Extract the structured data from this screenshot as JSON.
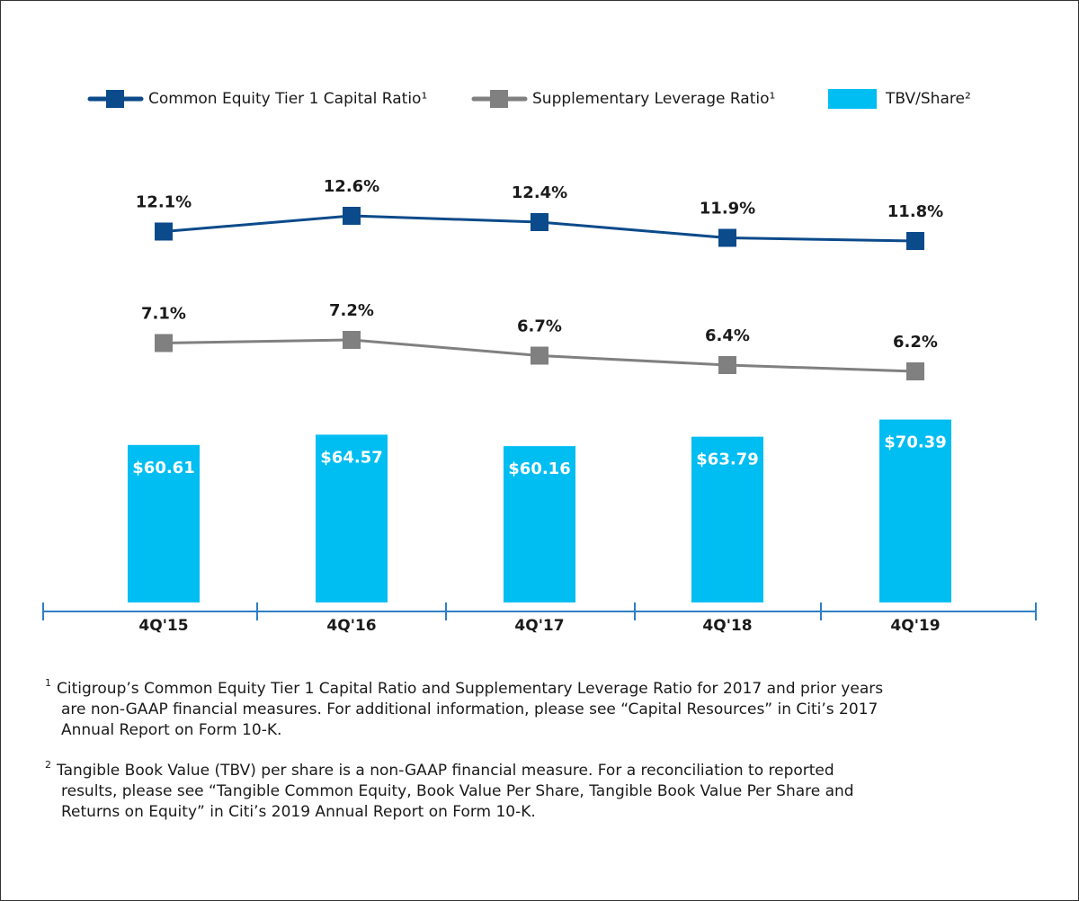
{
  "chart_data": {
    "type": "combo",
    "categories": [
      "4Q'15",
      "4Q'16",
      "4Q'17",
      "4Q'18",
      "4Q'19"
    ],
    "series": [
      {
        "name": "Common Equity Tier 1 Capital Ratio¹",
        "type": "line",
        "color": "#0b4a8b",
        "values": [
          12.1,
          12.6,
          12.4,
          11.9,
          11.8
        ],
        "value_labels": [
          "12.1%",
          "12.6%",
          "12.4%",
          "11.9%",
          "11.8%"
        ]
      },
      {
        "name": "Supplementary Leverage Ratio¹",
        "type": "line",
        "color": "#808080",
        "values": [
          7.1,
          7.2,
          6.7,
          6.4,
          6.2
        ],
        "value_labels": [
          "7.1%",
          "7.2%",
          "6.7%",
          "6.4%",
          "6.2%"
        ]
      },
      {
        "name": "TBV/Share²",
        "type": "bar",
        "color": "#00bdf2",
        "values": [
          60.61,
          64.57,
          60.16,
          63.79,
          70.39
        ],
        "value_labels": [
          "$60.61",
          "$64.57",
          "$60.16",
          "$63.79",
          "$70.39"
        ]
      }
    ],
    "footnotes": [
      {
        "marker": "1",
        "lines": [
          "Citigroup’s Common Equity Tier 1 Capital Ratio and Supplementary Leverage Ratio for 2017 and prior years",
          "are non-GAAP financial measures. For additional information, please see “Capital Resources” in Citi’s 2017",
          "Annual Report on Form 10-K."
        ]
      },
      {
        "marker": "2",
        "lines": [
          "Tangible Book Value (TBV) per share is a non-GAAP financial measure. For a reconciliation to reported",
          "results, please see “Tangible Common Equity, Book Value Per Share, Tangible Book Value Per Share and",
          "Returns on Equity” in Citi’s 2019 Annual Report on Form 10-K."
        ]
      }
    ]
  }
}
